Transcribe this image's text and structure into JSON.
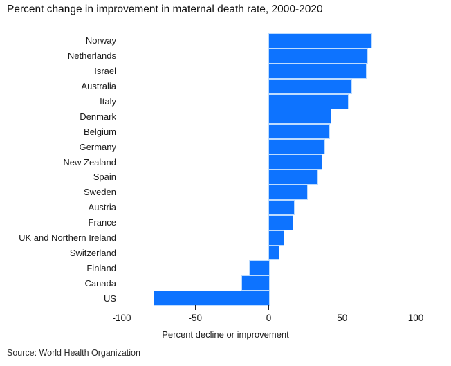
{
  "title": "Percent change in improvement in maternal death rate, 2000-2020",
  "source": "Source: World Health Organization",
  "colors": {
    "bar": "#0d73ff",
    "bar_edge": "#b2d6ff",
    "text": "#1a1a1a",
    "tick": "#222222",
    "background": "#ffffff"
  },
  "chart_data": {
    "type": "bar",
    "orientation": "horizontal",
    "title": "Percent change in improvement in maternal death rate, 2000-2020",
    "xlabel": "Percent decline or improvement",
    "ylabel": "",
    "xlim": [
      -100,
      100
    ],
    "xticks": [
      -100,
      -50,
      0,
      50,
      100
    ],
    "xtick_labels": [
      "-100",
      "-50",
      "0",
      "50",
      "100"
    ],
    "tick_marks_at": [
      -50,
      0,
      50,
      100
    ],
    "grid": false,
    "legend": null,
    "categories": [
      "Norway",
      "Netherlands",
      "Israel",
      "Australia",
      "Italy",
      "Denmark",
      "Belgium",
      "Germany",
      "New Zealand",
      "Spain",
      "Sweden",
      "Austria",
      "France",
      "UK and Northern Ireland",
      "Switzerland",
      "Finland",
      "Canada",
      "US"
    ],
    "values": [
      70,
      67,
      66,
      56,
      54,
      42,
      41,
      38,
      36,
      33,
      26,
      17,
      16,
      10,
      7,
      -13,
      -18,
      -78
    ]
  }
}
